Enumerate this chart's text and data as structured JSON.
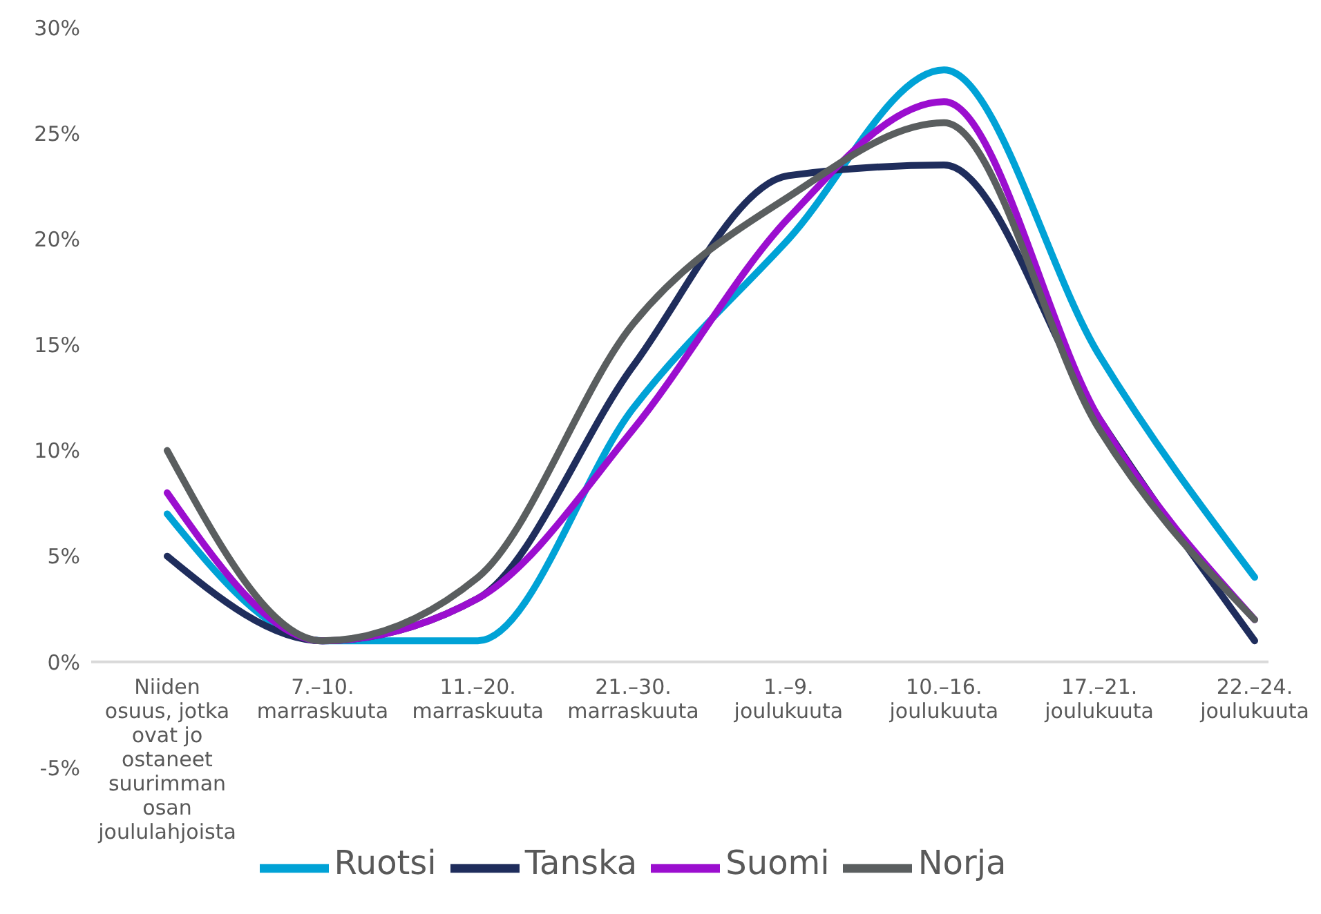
{
  "chart_data": {
    "type": "line",
    "categories": [
      "Niiden osuus, jotka ovat jo ostaneet suurimman osan joululahjoista",
      "7.–10. marraskuuta",
      "11.–20. marraskuuta",
      "21.–30. marraskuuta",
      "1.–9. joulukuuta",
      "10.–16. joulukuuta",
      "17.–21. joulukuuta",
      "22.–24. joulukuuta"
    ],
    "series": [
      {
        "name": "Ruotsi",
        "color": "#00a2d6",
        "values": [
          7,
          1,
          1,
          12,
          20,
          28,
          14.5,
          4
        ]
      },
      {
        "name": "Tanska",
        "color": "#1f2d5c",
        "values": [
          5,
          1,
          3,
          14,
          23,
          23.5,
          11.5,
          1
        ]
      },
      {
        "name": "Suomi",
        "color": "#9b0ecf",
        "values": [
          8,
          1,
          3,
          11,
          21,
          26.5,
          11.5,
          2
        ]
      },
      {
        "name": "Norja",
        "color": "#5a5e5f",
        "values": [
          10,
          1,
          4,
          16,
          22,
          25.5,
          11,
          2
        ]
      }
    ],
    "ylim": [
      -5,
      30
    ],
    "yticks": [
      {
        "value": -5,
        "label": "-5%"
      },
      {
        "value": 0,
        "label": "0%"
      },
      {
        "value": 5,
        "label": "5%"
      },
      {
        "value": 10,
        "label": "10%"
      },
      {
        "value": 15,
        "label": "15%"
      },
      {
        "value": 20,
        "label": "20%"
      },
      {
        "value": 25,
        "label": "25%"
      },
      {
        "value": 30,
        "label": "30%"
      }
    ],
    "grid": false,
    "legend": "bottom",
    "marker": "none",
    "line_style": "solid"
  }
}
